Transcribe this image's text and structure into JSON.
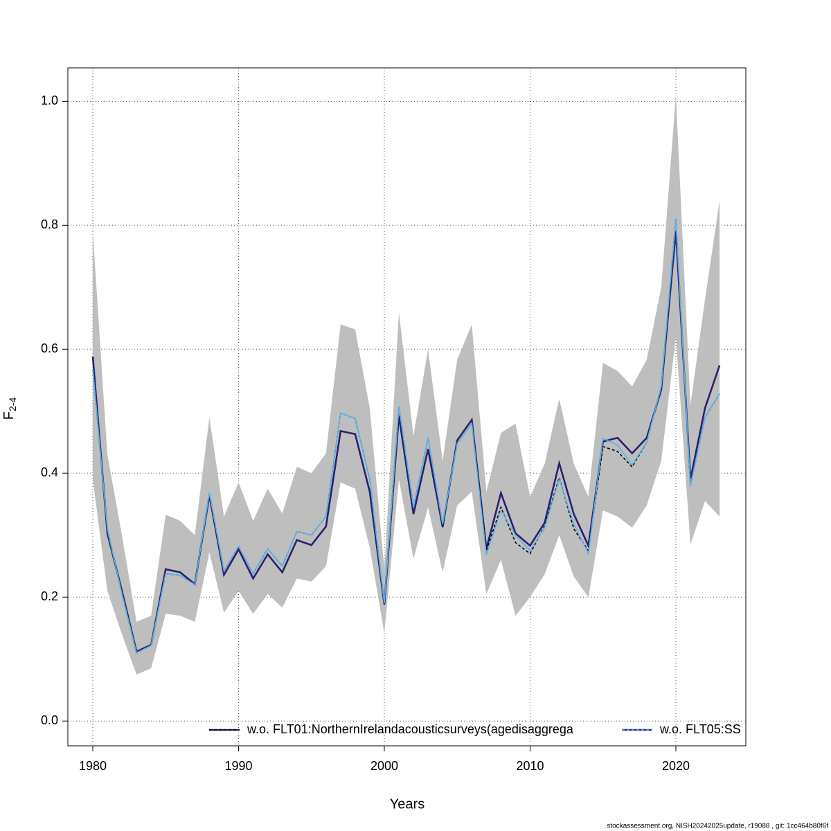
{
  "chart_data": {
    "type": "line",
    "x_label": "Years",
    "y_label": {
      "main": "F",
      "sub": "2-4"
    },
    "footer": "stockassessment.org, NISH20242025update, r19088 , git: 1cc464b80f6f",
    "x": [
      1980,
      1981,
      1982,
      1983,
      1984,
      1985,
      1986,
      1987,
      1988,
      1989,
      1990,
      1991,
      1992,
      1993,
      1994,
      1995,
      1996,
      1997,
      1998,
      1999,
      2000,
      2001,
      2002,
      2003,
      2004,
      2005,
      2006,
      2007,
      2008,
      2009,
      2010,
      2011,
      2012,
      2013,
      2014,
      2015,
      2016,
      2017,
      2018,
      2019,
      2020,
      2021,
      2022,
      2023
    ],
    "xlim": [
      1978.29,
      2024.8
    ],
    "xticks": [
      1980,
      1990,
      2000,
      2010,
      2020
    ],
    "ylim": [
      -0.04,
      1.054
    ],
    "yticks": [
      {
        "value": 0,
        "label": "0.0"
      },
      0.2,
      0.4,
      0.6,
      0.8,
      {
        "value": 1,
        "label": "1.0"
      }
    ],
    "grid": true,
    "confidence_band": {
      "color": "#bebebe",
      "upper": [
        0.79,
        0.43,
        0.3,
        0.16,
        0.17,
        0.333,
        0.323,
        0.3,
        0.49,
        0.33,
        0.385,
        0.323,
        0.375,
        0.335,
        0.41,
        0.4,
        0.432,
        0.64,
        0.632,
        0.505,
        0.245,
        0.66,
        0.46,
        0.6,
        0.42,
        0.583,
        0.64,
        0.37,
        0.465,
        0.48,
        0.362,
        0.415,
        0.52,
        0.415,
        0.362,
        0.578,
        0.565,
        0.54,
        0.583,
        0.7,
        1.01,
        0.51,
        0.68,
        0.84
      ],
      "lower": [
        0.39,
        0.21,
        0.14,
        0.075,
        0.085,
        0.173,
        0.17,
        0.16,
        0.272,
        0.175,
        0.21,
        0.173,
        0.205,
        0.183,
        0.23,
        0.225,
        0.25,
        0.385,
        0.375,
        0.28,
        0.142,
        0.39,
        0.262,
        0.345,
        0.24,
        0.348,
        0.37,
        0.205,
        0.26,
        0.17,
        0.2,
        0.237,
        0.3,
        0.233,
        0.2,
        0.34,
        0.33,
        0.312,
        0.348,
        0.42,
        0.62,
        0.285,
        0.355,
        0.33
      ]
    },
    "estimate": {
      "color": "#2d1e6e",
      "values": [
        0.588,
        0.303,
        0.21,
        0.112,
        0.123,
        0.245,
        0.24,
        0.221,
        0.364,
        0.236,
        0.277,
        0.23,
        0.269,
        0.24,
        0.292,
        0.284,
        0.314,
        0.468,
        0.463,
        0.37,
        0.188,
        0.493,
        0.334,
        0.439,
        0.313,
        0.453,
        0.486,
        0.278,
        0.368,
        0.303,
        0.283,
        0.32,
        0.416,
        0.334,
        0.283,
        0.451,
        0.457,
        0.432,
        0.457,
        0.535,
        0.791,
        0.39,
        0.505,
        0.574
      ]
    },
    "series": [
      {
        "name": "w.o. FLT01:NorthernIrelandacousticsurveys(agedisaggrega",
        "color": "#000000",
        "dashed": true,
        "values": [
          0.568,
          0.31,
          0.205,
          0.11,
          0.122,
          0.238,
          0.235,
          0.22,
          0.368,
          0.242,
          0.282,
          0.238,
          0.278,
          0.25,
          0.306,
          0.3,
          0.33,
          0.497,
          0.488,
          0.39,
          0.19,
          0.508,
          0.345,
          0.457,
          0.318,
          0.448,
          0.48,
          0.275,
          0.345,
          0.288,
          0.27,
          0.315,
          0.393,
          0.31,
          0.275,
          0.443,
          0.435,
          0.41,
          0.45,
          0.54,
          0.81,
          0.38,
          0.49,
          0.528
        ]
      },
      {
        "name": "w.o. FLT05:SS",
        "color": "#56b4e9",
        "dashed": false,
        "values": [
          0.568,
          0.31,
          0.205,
          0.11,
          0.122,
          0.238,
          0.235,
          0.22,
          0.368,
          0.242,
          0.282,
          0.238,
          0.278,
          0.25,
          0.306,
          0.3,
          0.33,
          0.497,
          0.488,
          0.39,
          0.19,
          0.508,
          0.345,
          0.457,
          0.318,
          0.448,
          0.48,
          0.268,
          0.34,
          0.3,
          0.275,
          0.312,
          0.39,
          0.318,
          0.27,
          0.456,
          0.445,
          0.413,
          0.45,
          0.54,
          0.81,
          0.38,
          0.49,
          0.528
        ]
      }
    ]
  }
}
